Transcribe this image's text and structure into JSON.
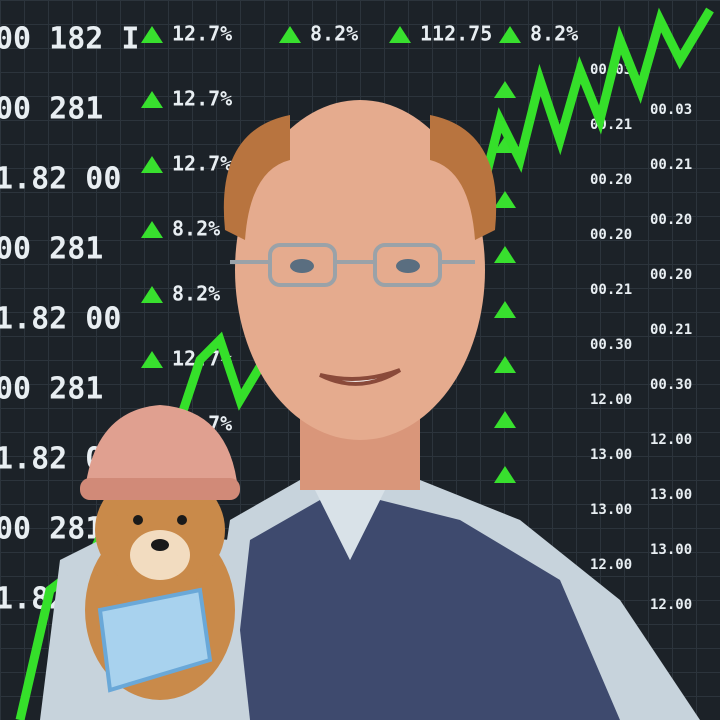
{
  "board": {
    "left_column": [
      "00 182 I",
      "00 281",
      "1.82 00",
      "00 281",
      "1.82 00",
      "00 281",
      "1.82 00",
      "00 281",
      "1.82 00"
    ],
    "middle_column": [
      "12.7%",
      "12.7%",
      "12.7%",
      "8.2%",
      "8.2%",
      "12.7%",
      "12.7%"
    ],
    "upper_row": [
      "8.2%",
      "112.75",
      "8.2%"
    ],
    "right_column": [
      "00.03",
      "00.21",
      "00.20",
      "00.20",
      "00.21",
      "00.30",
      "12.00",
      "13.00",
      "13.00",
      "12.00"
    ]
  }
}
